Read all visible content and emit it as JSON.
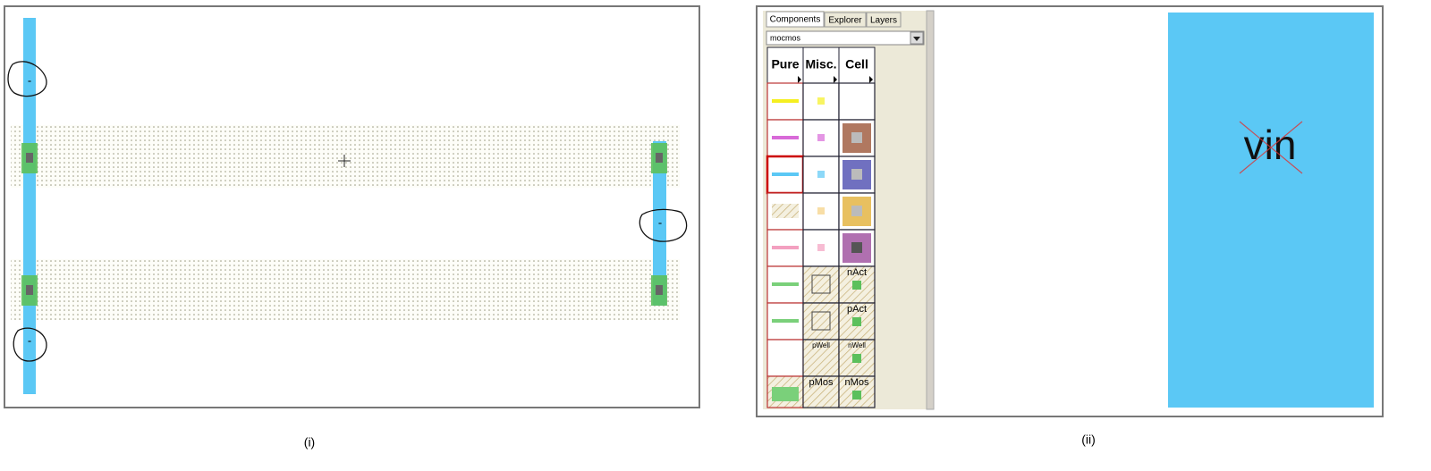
{
  "panel_i": {
    "caption": "(i)",
    "annotations": [
      "-",
      "-",
      "-"
    ]
  },
  "panel_ii": {
    "caption": "(ii)",
    "tabs": [
      "Components",
      "Explorer",
      "Layers"
    ],
    "technology": "mocmos",
    "columns": [
      "Pure",
      "Misc.",
      "Cell"
    ],
    "cell_labels": [
      "nAct",
      "pAct",
      "pWell",
      "nWell",
      "pMos",
      "nMos"
    ],
    "net_label": "vin"
  }
}
